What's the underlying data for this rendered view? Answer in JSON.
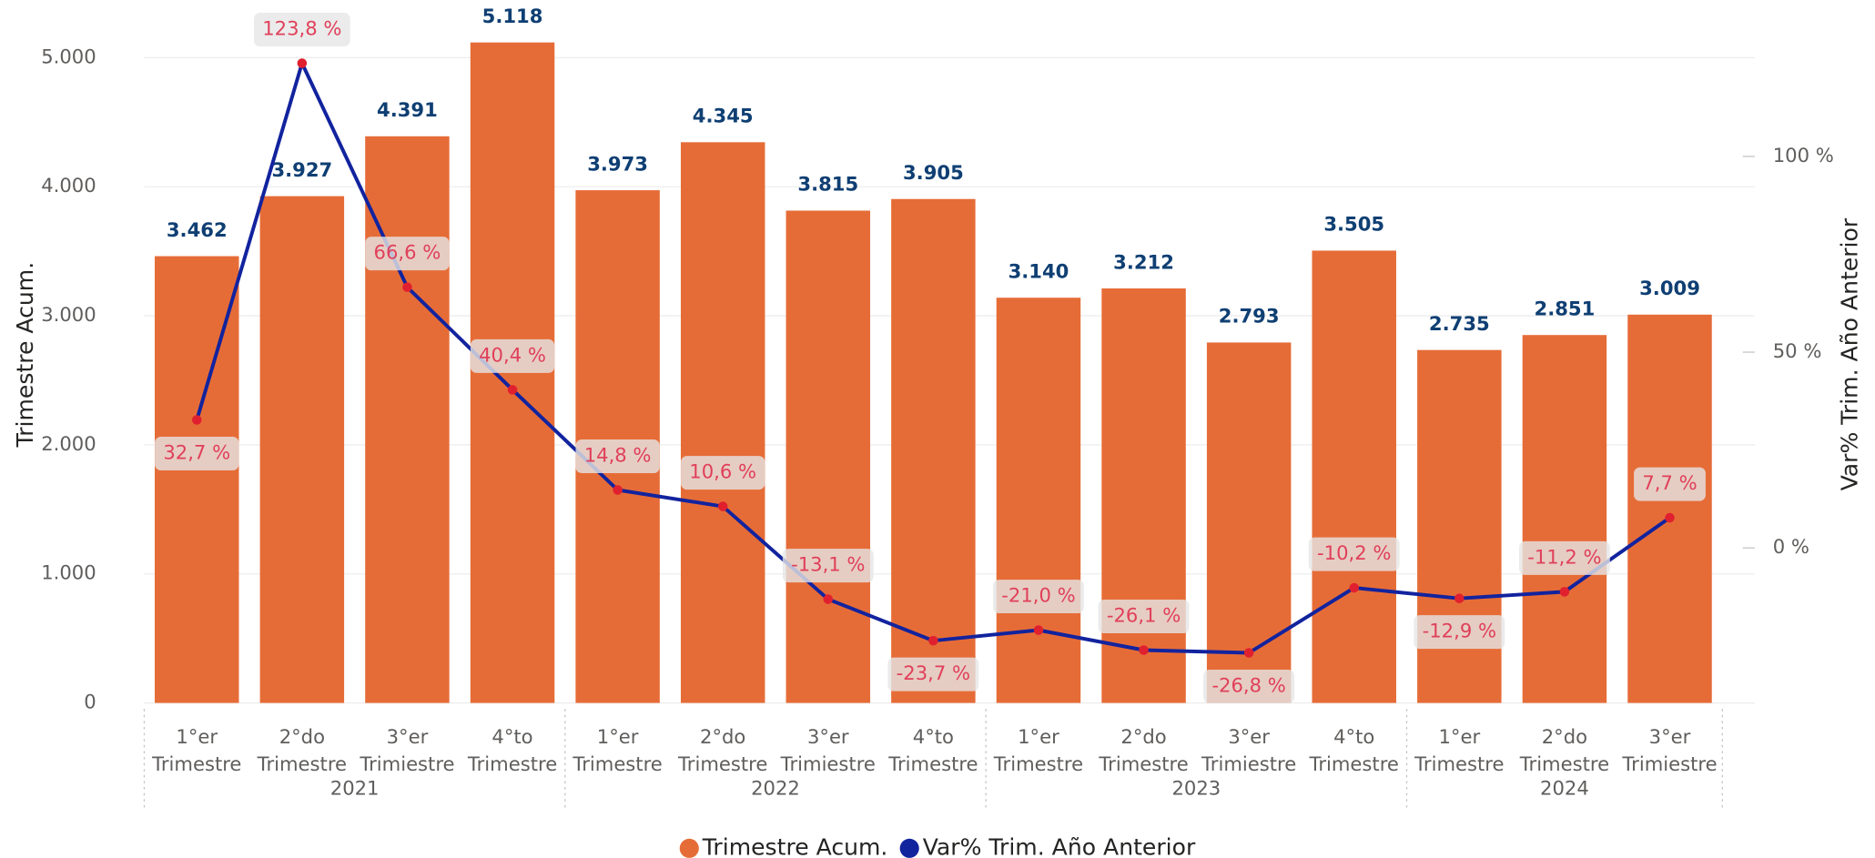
{
  "chart_data": {
    "type": "bar_line",
    "categories": [
      [
        "1°er",
        "Trimestre"
      ],
      [
        "2°do",
        "Trimestre"
      ],
      [
        "3°er",
        "Trimiestre"
      ],
      [
        "4°to",
        "Trimestre"
      ],
      [
        "1°er",
        "Trimestre"
      ],
      [
        "2°do",
        "Trimestre"
      ],
      [
        "3°er",
        "Trimiestre"
      ],
      [
        "4°to",
        "Trimestre"
      ],
      [
        "1°er",
        "Trimestre"
      ],
      [
        "2°do",
        "Trimestre"
      ],
      [
        "3°er",
        "Trimiestre"
      ],
      [
        "4°to",
        "Trimestre"
      ],
      [
        "1°er",
        "Trimestre"
      ],
      [
        "2°do",
        "Trimestre"
      ],
      [
        "3°er",
        "Trimiestre"
      ]
    ],
    "x_groups": [
      {
        "label": "2021",
        "size": 4
      },
      {
        "label": "2022",
        "size": 4
      },
      {
        "label": "2023",
        "size": 4
      },
      {
        "label": "2024",
        "size": 3
      }
    ],
    "series": [
      {
        "name": "Trimestre Acum.",
        "color": "#e66c37",
        "type": "bar",
        "values": [
          3462,
          3927,
          4391,
          5118,
          3973,
          4345,
          3815,
          3905,
          3140,
          3212,
          2793,
          3505,
          2735,
          2851,
          3009
        ],
        "value_labels": [
          "3.462",
          "3.927",
          "4.391",
          "5.118",
          "3.973",
          "4.345",
          "3.815",
          "3.905",
          "3.140",
          "3.212",
          "2.793",
          "3.505",
          "2.735",
          "2.851",
          "3.009"
        ]
      },
      {
        "name": "Var% Trim. Año Anterior",
        "color": "#12239e",
        "type": "line",
        "axis": "y2",
        "values": [
          32.7,
          123.8,
          66.6,
          40.4,
          14.8,
          10.6,
          -13.1,
          -23.7,
          -21.0,
          -26.1,
          -26.8,
          -10.2,
          -12.9,
          -11.2,
          7.7
        ],
        "value_labels": [
          "32,7 %",
          "123,8 %",
          "66,6 %",
          "40,4 %",
          "14,8 %",
          "10,6 %",
          "-13,1 %",
          "-23,7 %",
          "-21,0 %",
          "-26,1 %",
          "-26,8 %",
          "-10,2 %",
          "-12,9 %",
          "-11,2 %",
          "7,7 %"
        ]
      }
    ],
    "ylabel": "Trimestre Acum.",
    "y2label": "Var% Trim. Año Anterior",
    "ylim": [
      0,
      5400
    ],
    "yticks": [
      0,
      {
        "value": 1000,
        "label": "1.000"
      },
      {
        "value": 2000,
        "label": "2.000"
      },
      {
        "value": 3000,
        "label": "3.000"
      },
      {
        "value": 4000,
        "label": "4.000"
      },
      {
        "value": 5000,
        "label": "5.000"
      }
    ],
    "y2lim": [
      -39.6,
      138.4
    ],
    "y2ticks": [
      {
        "value": 0,
        "label": "0 %"
      },
      {
        "value": 50,
        "label": "50 %"
      },
      {
        "value": 100,
        "label": "100 %"
      }
    ],
    "grid": true,
    "legend": "bottom"
  }
}
